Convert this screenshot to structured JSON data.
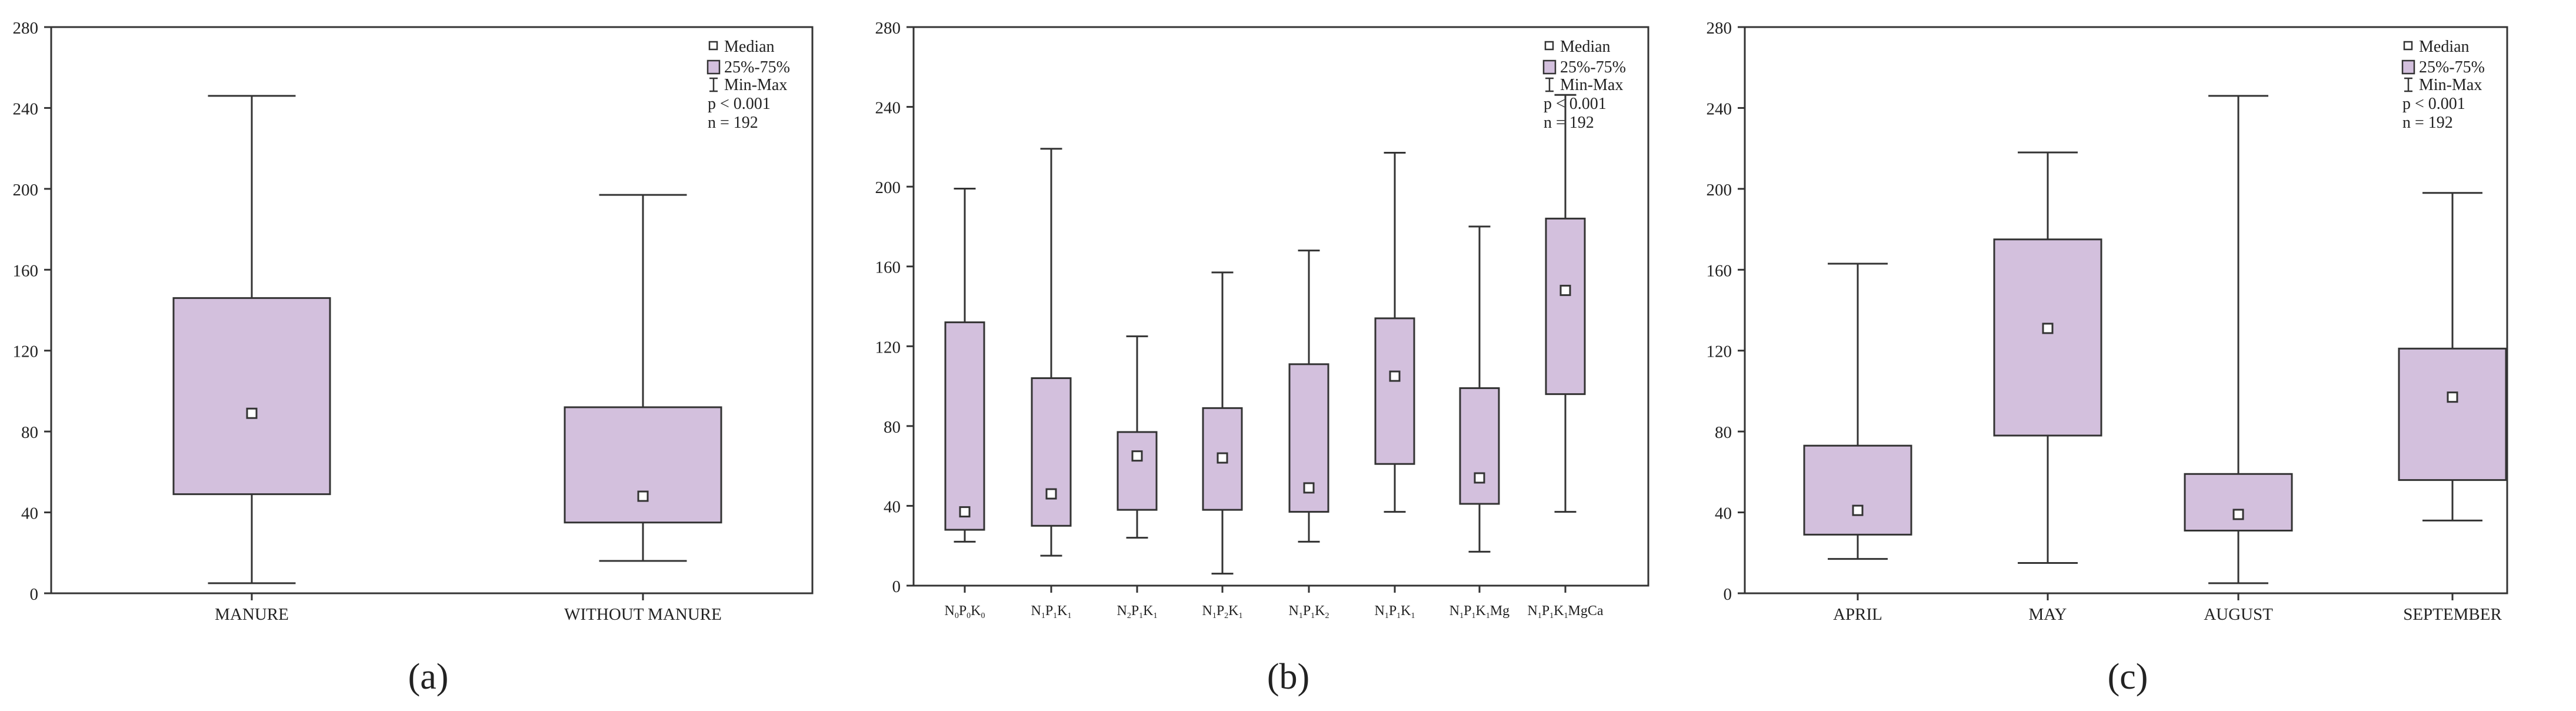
{
  "colors": {
    "box_fill": "#d3c0dd",
    "line": "#333333",
    "background": "#ffffff"
  },
  "legend": {
    "median_label": "Median",
    "box_label": "25%-75%",
    "whisker_label": "Min-Max",
    "p_value": "p < 0.001",
    "n": "n = 192"
  },
  "chart_data": [
    {
      "panel_label": "(a)",
      "type": "boxplot",
      "y_ticks": [
        "0",
        "40",
        "80",
        "120",
        "160",
        "200",
        "240",
        "280"
      ],
      "ylim": [
        0,
        280
      ],
      "legend_position": "top-right",
      "categories": [
        "MANURE",
        "WITHOUT MANURE"
      ],
      "series": [
        {
          "category": "MANURE",
          "min": 5,
          "q1": 49,
          "median": 89,
          "q3": 146,
          "max": 246
        },
        {
          "category": "WITHOUT MANURE",
          "min": 16,
          "q1": 35,
          "median": 48,
          "q3": 92,
          "max": 197
        }
      ]
    },
    {
      "panel_label": "(b)",
      "type": "boxplot",
      "y_ticks": [
        "0",
        "40",
        "80",
        "120",
        "160",
        "200",
        "240",
        "280"
      ],
      "ylim": [
        0,
        280
      ],
      "legend_position": "top-right",
      "categories": [
        {
          "base": "N",
          "s1": "0",
          "m2": "P",
          "s2": "0",
          "m3": "K",
          "s3": "0",
          "tail": ""
        },
        {
          "base": "N",
          "s1": "1",
          "m2": "P",
          "s2": "1",
          "m3": "K",
          "s3": "1",
          "tail": ""
        },
        {
          "base": "N",
          "s1": "2",
          "m2": "P",
          "s2": "1",
          "m3": "K",
          "s3": "1",
          "tail": ""
        },
        {
          "base": "N",
          "s1": "1",
          "m2": "P",
          "s2": "2",
          "m3": "K",
          "s3": "1",
          "tail": ""
        },
        {
          "base": "N",
          "s1": "1",
          "m2": "P",
          "s2": "1",
          "m3": "K",
          "s3": "2",
          "tail": ""
        },
        {
          "base": "N",
          "s1": "1",
          "m2": "P",
          "s2": "1",
          "m3": "K",
          "s3": "1",
          "tail": ""
        },
        {
          "base": "N",
          "s1": "1",
          "m2": "P",
          "s2": "1",
          "m3": "K",
          "s3": "1",
          "tail": "Mg"
        },
        {
          "base": "N",
          "s1": "1",
          "m2": "P",
          "s2": "1",
          "m3": "K",
          "s3": "1",
          "tail": "MgCa"
        }
      ],
      "series": [
        {
          "min": 22,
          "q1": 28,
          "median": 37,
          "q3": 132,
          "max": 199
        },
        {
          "min": 15,
          "q1": 30,
          "median": 46,
          "q3": 104,
          "max": 219
        },
        {
          "min": 24,
          "q1": 38,
          "median": 65,
          "q3": 77,
          "max": 125
        },
        {
          "min": 6,
          "q1": 38,
          "median": 64,
          "q3": 89,
          "max": 157
        },
        {
          "min": 22,
          "q1": 37,
          "median": 49,
          "q3": 111,
          "max": 168
        },
        {
          "min": 37,
          "q1": 61,
          "median": 105,
          "q3": 134,
          "max": 217
        },
        {
          "min": 17,
          "q1": 41,
          "median": 54,
          "q3": 99,
          "max": 180
        },
        {
          "min": 37,
          "q1": 96,
          "median": 148,
          "q3": 184,
          "max": 246
        }
      ]
    },
    {
      "panel_label": "(c)",
      "type": "boxplot",
      "y_ticks": [
        "0",
        "40",
        "80",
        "120",
        "160",
        "200",
        "240",
        "280"
      ],
      "ylim": [
        0,
        280
      ],
      "legend_position": "top-right",
      "categories": [
        "APRIL",
        "MAY",
        "AUGUST",
        "SEPTEMBER"
      ],
      "series": [
        {
          "category": "APRIL",
          "min": 17,
          "q1": 29,
          "median": 41,
          "q3": 73,
          "max": 163
        },
        {
          "category": "MAY",
          "min": 15,
          "q1": 78,
          "median": 131,
          "q3": 175,
          "max": 218
        },
        {
          "category": "AUGUST",
          "min": 5,
          "q1": 31,
          "median": 39,
          "q3": 59,
          "max": 246
        },
        {
          "category": "SEPTEMBER",
          "min": 36,
          "q1": 56,
          "median": 97,
          "q3": 121,
          "max": 198
        }
      ]
    }
  ]
}
